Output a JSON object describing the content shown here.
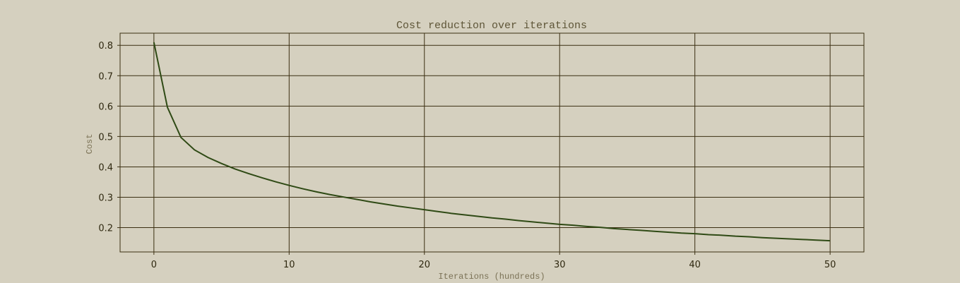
{
  "chart_data": {
    "type": "line",
    "title": "Cost reduction over iterations",
    "xlabel": "Iterations (hundreds)",
    "ylabel": "Cost",
    "xlim": [
      -2.5,
      52.5
    ],
    "ylim": [
      0.12,
      0.84
    ],
    "xticks": [
      0,
      10,
      20,
      30,
      40,
      50
    ],
    "xtick_labels": [
      "0",
      "10",
      "20",
      "30",
      "40",
      "50"
    ],
    "yticks": [
      0.2,
      0.3,
      0.4,
      0.5,
      0.6,
      0.7,
      0.8
    ],
    "ytick_labels": [
      "0.2",
      "0.3",
      "0.4",
      "0.5",
      "0.6",
      "0.7",
      "0.8"
    ],
    "grid": true,
    "colors": {
      "line": "#2f4a15",
      "grid": "#3b2f12",
      "background": "#d5d0bf"
    },
    "series": [
      {
        "x": [
          0,
          1,
          2,
          3,
          4,
          5,
          6,
          7,
          8,
          9,
          10,
          11,
          12,
          13,
          14,
          15,
          16,
          17,
          18,
          19,
          20,
          21,
          22,
          23,
          24,
          25,
          26,
          27,
          28,
          29,
          30,
          31,
          32,
          33,
          34,
          35,
          36,
          37,
          38,
          39,
          40,
          41,
          42,
          43,
          44,
          45,
          46,
          47,
          48,
          49,
          50
        ],
        "values": [
          0.81,
          0.596,
          0.497,
          0.456,
          0.431,
          0.411,
          0.393,
          0.378,
          0.364,
          0.351,
          0.339,
          0.328,
          0.318,
          0.309,
          0.301,
          0.293,
          0.285,
          0.278,
          0.271,
          0.265,
          0.259,
          0.253,
          0.247,
          0.242,
          0.237,
          0.232,
          0.228,
          0.223,
          0.219,
          0.215,
          0.211,
          0.208,
          0.204,
          0.201,
          0.197,
          0.194,
          0.191,
          0.188,
          0.185,
          0.182,
          0.18,
          0.177,
          0.175,
          0.172,
          0.17,
          0.167,
          0.165,
          0.163,
          0.161,
          0.159,
          0.157
        ]
      }
    ]
  }
}
